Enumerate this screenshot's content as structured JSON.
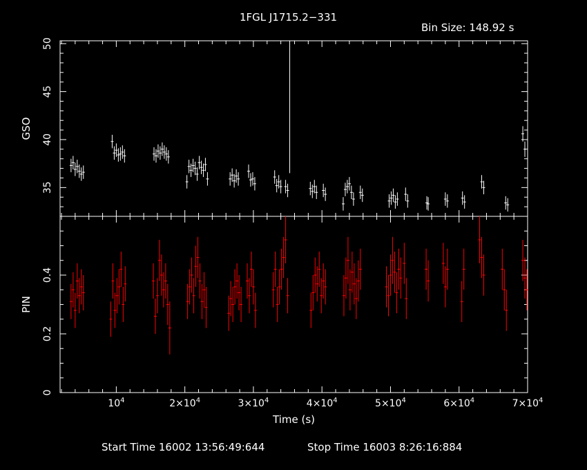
{
  "title": "1FGL J1715.2−331",
  "bin_size_label": "Bin Size:  148.92  s",
  "footer": {
    "start": "Start Time 16002 13:56:49:644",
    "stop": "Stop Time 16003  8:26:16:884"
  },
  "colors": {
    "background": "#000000",
    "gso": "#ffffff",
    "pin": "#ff0000",
    "axes": "#ffffff"
  },
  "chart_data": [
    {
      "type": "scatter",
      "panel": "top",
      "ylabel": "GSO",
      "xlim": [
        1800,
        70000
      ],
      "ylim": [
        32,
        50.3
      ],
      "yticks": [
        35,
        40,
        45,
        50
      ],
      "yticklabels": [
        "35",
        "40",
        "45",
        "50"
      ],
      "series": [
        {
          "x": [
            3400,
            3700,
            4000,
            4300,
            4600,
            4900,
            5200,
            9400,
            9700,
            10000,
            10300,
            10600,
            10900,
            11200,
            15500,
            15800,
            16100,
            16400,
            16700,
            17000,
            17300,
            17600,
            20300,
            20600,
            20900,
            21200,
            21500,
            21800,
            22100,
            22400,
            22700,
            23000,
            23300,
            26600,
            26900,
            27200,
            27500,
            27800,
            29300,
            29600,
            29900,
            30200,
            33100,
            33400,
            33700,
            34000,
            34700,
            35000,
            38300,
            38600,
            38900,
            39200,
            40200,
            40500,
            43100,
            43400,
            43700,
            44000,
            44300,
            44600,
            45600,
            45900,
            49800,
            50100,
            50400,
            50700,
            51000,
            52200,
            52500,
            55300,
            55500,
            58000,
            58300,
            60500,
            60800,
            63300,
            63600,
            66800,
            67100,
            69300,
            69600
          ],
          "y": [
            37.3,
            37.6,
            36.9,
            37.2,
            36.7,
            36.4,
            36.6,
            39.8,
            38.6,
            38.9,
            38.4,
            38.5,
            38.7,
            38.3,
            38.5,
            38.3,
            38.8,
            38.6,
            39.0,
            38.7,
            38.5,
            38.2,
            35.6,
            37.2,
            36.8,
            37.3,
            37.0,
            36.4,
            37.6,
            37.1,
            36.8,
            37.4,
            35.9,
            35.9,
            36.3,
            35.7,
            36.2,
            35.9,
            36.7,
            35.8,
            35.9,
            35.4,
            36.1,
            35.2,
            35.6,
            35.1,
            35.1,
            34.7,
            34.9,
            34.6,
            35.1,
            34.5,
            34.7,
            34.3,
            33.3,
            34.8,
            35.1,
            35.4,
            34.5,
            33.8,
            34.5,
            34.2,
            33.6,
            33.9,
            34.2,
            33.5,
            33.8,
            34.3,
            33.6,
            33.4,
            33.3,
            33.8,
            33.6,
            33.9,
            33.5,
            35.6,
            35.0,
            33.4,
            33.2,
            40.6,
            39.0
          ],
          "yerr": [
            0.7,
            0.7,
            0.7,
            0.7,
            0.7,
            0.7,
            0.7,
            0.7,
            0.7,
            0.7,
            0.7,
            0.7,
            0.7,
            0.7,
            0.7,
            0.7,
            0.7,
            0.7,
            0.7,
            0.7,
            0.7,
            0.7,
            0.7,
            0.7,
            0.7,
            0.7,
            0.7,
            0.7,
            0.7,
            0.7,
            0.7,
            0.7,
            0.7,
            0.7,
            0.7,
            0.7,
            0.7,
            0.7,
            0.7,
            0.7,
            0.7,
            0.7,
            0.7,
            0.7,
            0.7,
            0.7,
            0.7,
            0.7,
            0.7,
            0.7,
            0.7,
            0.7,
            0.7,
            0.7,
            0.7,
            0.7,
            0.7,
            0.7,
            0.7,
            0.7,
            0.7,
            0.7,
            0.7,
            0.7,
            0.7,
            0.7,
            0.7,
            0.7,
            0.7,
            0.7,
            0.7,
            0.7,
            0.7,
            0.7,
            0.7,
            0.7,
            0.7,
            0.7,
            0.7,
            0.8,
            0.8
          ]
        }
      ],
      "spike": {
        "x": 35300,
        "y0": 36.5,
        "y1": 50.3
      }
    },
    {
      "type": "scatter",
      "panel": "bottom",
      "xlabel": "Time (s)",
      "ylabel": "PIN",
      "xlim": [
        1800,
        70000
      ],
      "ylim": [
        0,
        0.6
      ],
      "yticks": [
        0,
        0.2,
        0.4
      ],
      "yticklabels": [
        "0",
        "0.2",
        "0.4"
      ],
      "xticks": [
        10000,
        20000,
        30000,
        40000,
        50000,
        60000,
        70000
      ],
      "xticklabels": [
        {
          "mant": "10",
          "exp": "4"
        },
        {
          "mant": "2×10",
          "exp": "4"
        },
        {
          "mant": "3×10",
          "exp": "4"
        },
        {
          "mant": "4×10",
          "exp": "4"
        },
        {
          "mant": "5×10",
          "exp": "4"
        },
        {
          "mant": "6×10",
          "exp": "4"
        },
        {
          "mant": "7×10",
          "exp": "4"
        }
      ],
      "series": [
        {
          "x": [
            3400,
            3700,
            4000,
            4300,
            4600,
            4900,
            5200,
            9200,
            9500,
            9800,
            10100,
            10400,
            10700,
            11000,
            11300,
            15400,
            15700,
            16000,
            16300,
            16600,
            16900,
            17200,
            17500,
            17800,
            20400,
            20700,
            21000,
            21300,
            21600,
            21900,
            22200,
            22500,
            22800,
            23100,
            26400,
            26700,
            27000,
            27300,
            27600,
            27900,
            28200,
            29100,
            29400,
            29700,
            30000,
            30300,
            32900,
            33200,
            33500,
            33800,
            34100,
            34400,
            34700,
            35000,
            38400,
            38700,
            39000,
            39300,
            39600,
            39900,
            40200,
            40500,
            43200,
            43500,
            43800,
            44100,
            44400,
            44700,
            45000,
            45300,
            45600,
            49400,
            49700,
            50000,
            50300,
            50600,
            50900,
            51200,
            51500,
            52000,
            52300,
            55200,
            55500,
            57700,
            58000,
            58300,
            60400,
            60700,
            63000,
            63300,
            63600,
            66300,
            66600,
            66900,
            69300,
            69600,
            69900
          ],
          "y": [
            0.31,
            0.35,
            0.28,
            0.38,
            0.33,
            0.36,
            0.34,
            0.25,
            0.38,
            0.28,
            0.33,
            0.36,
            0.42,
            0.3,
            0.37,
            0.38,
            0.26,
            0.33,
            0.45,
            0.4,
            0.35,
            0.38,
            0.3,
            0.22,
            0.31,
            0.36,
            0.4,
            0.33,
            0.43,
            0.46,
            0.38,
            0.31,
            0.35,
            0.29,
            0.27,
            0.32,
            0.3,
            0.36,
            0.38,
            0.34,
            0.3,
            0.38,
            0.33,
            0.42,
            0.36,
            0.28,
            0.35,
            0.42,
            0.3,
            0.36,
            0.42,
            0.46,
            0.52,
            0.33,
            0.28,
            0.34,
            0.4,
            0.37,
            0.42,
            0.33,
            0.38,
            0.36,
            0.33,
            0.39,
            0.45,
            0.35,
            0.41,
            0.37,
            0.32,
            0.38,
            0.42,
            0.36,
            0.33,
            0.4,
            0.45,
            0.41,
            0.34,
            0.42,
            0.39,
            0.44,
            0.32,
            0.42,
            0.38,
            0.44,
            0.36,
            0.42,
            0.31,
            0.42,
            0.52,
            0.46,
            0.4,
            0.42,
            0.35,
            0.28,
            0.45,
            0.39,
            0.35
          ],
          "yerr": [
            0.06,
            0.06,
            0.06,
            0.06,
            0.06,
            0.06,
            0.06,
            0.06,
            0.06,
            0.06,
            0.06,
            0.06,
            0.06,
            0.06,
            0.06,
            0.06,
            0.06,
            0.06,
            0.07,
            0.07,
            0.06,
            0.06,
            0.07,
            0.09,
            0.06,
            0.06,
            0.06,
            0.06,
            0.07,
            0.07,
            0.06,
            0.06,
            0.06,
            0.07,
            0.06,
            0.06,
            0.06,
            0.06,
            0.06,
            0.06,
            0.06,
            0.06,
            0.06,
            0.06,
            0.06,
            0.06,
            0.06,
            0.06,
            0.06,
            0.06,
            0.07,
            0.07,
            0.08,
            0.06,
            0.06,
            0.06,
            0.06,
            0.06,
            0.06,
            0.06,
            0.06,
            0.06,
            0.07,
            0.07,
            0.08,
            0.07,
            0.07,
            0.07,
            0.07,
            0.07,
            0.07,
            0.07,
            0.07,
            0.07,
            0.08,
            0.07,
            0.07,
            0.07,
            0.07,
            0.07,
            0.07,
            0.07,
            0.07,
            0.07,
            0.07,
            0.07,
            0.07,
            0.07,
            0.08,
            0.07,
            0.07,
            0.07,
            0.07,
            0.07,
            0.07,
            0.07,
            0.07
          ]
        }
      ]
    }
  ]
}
